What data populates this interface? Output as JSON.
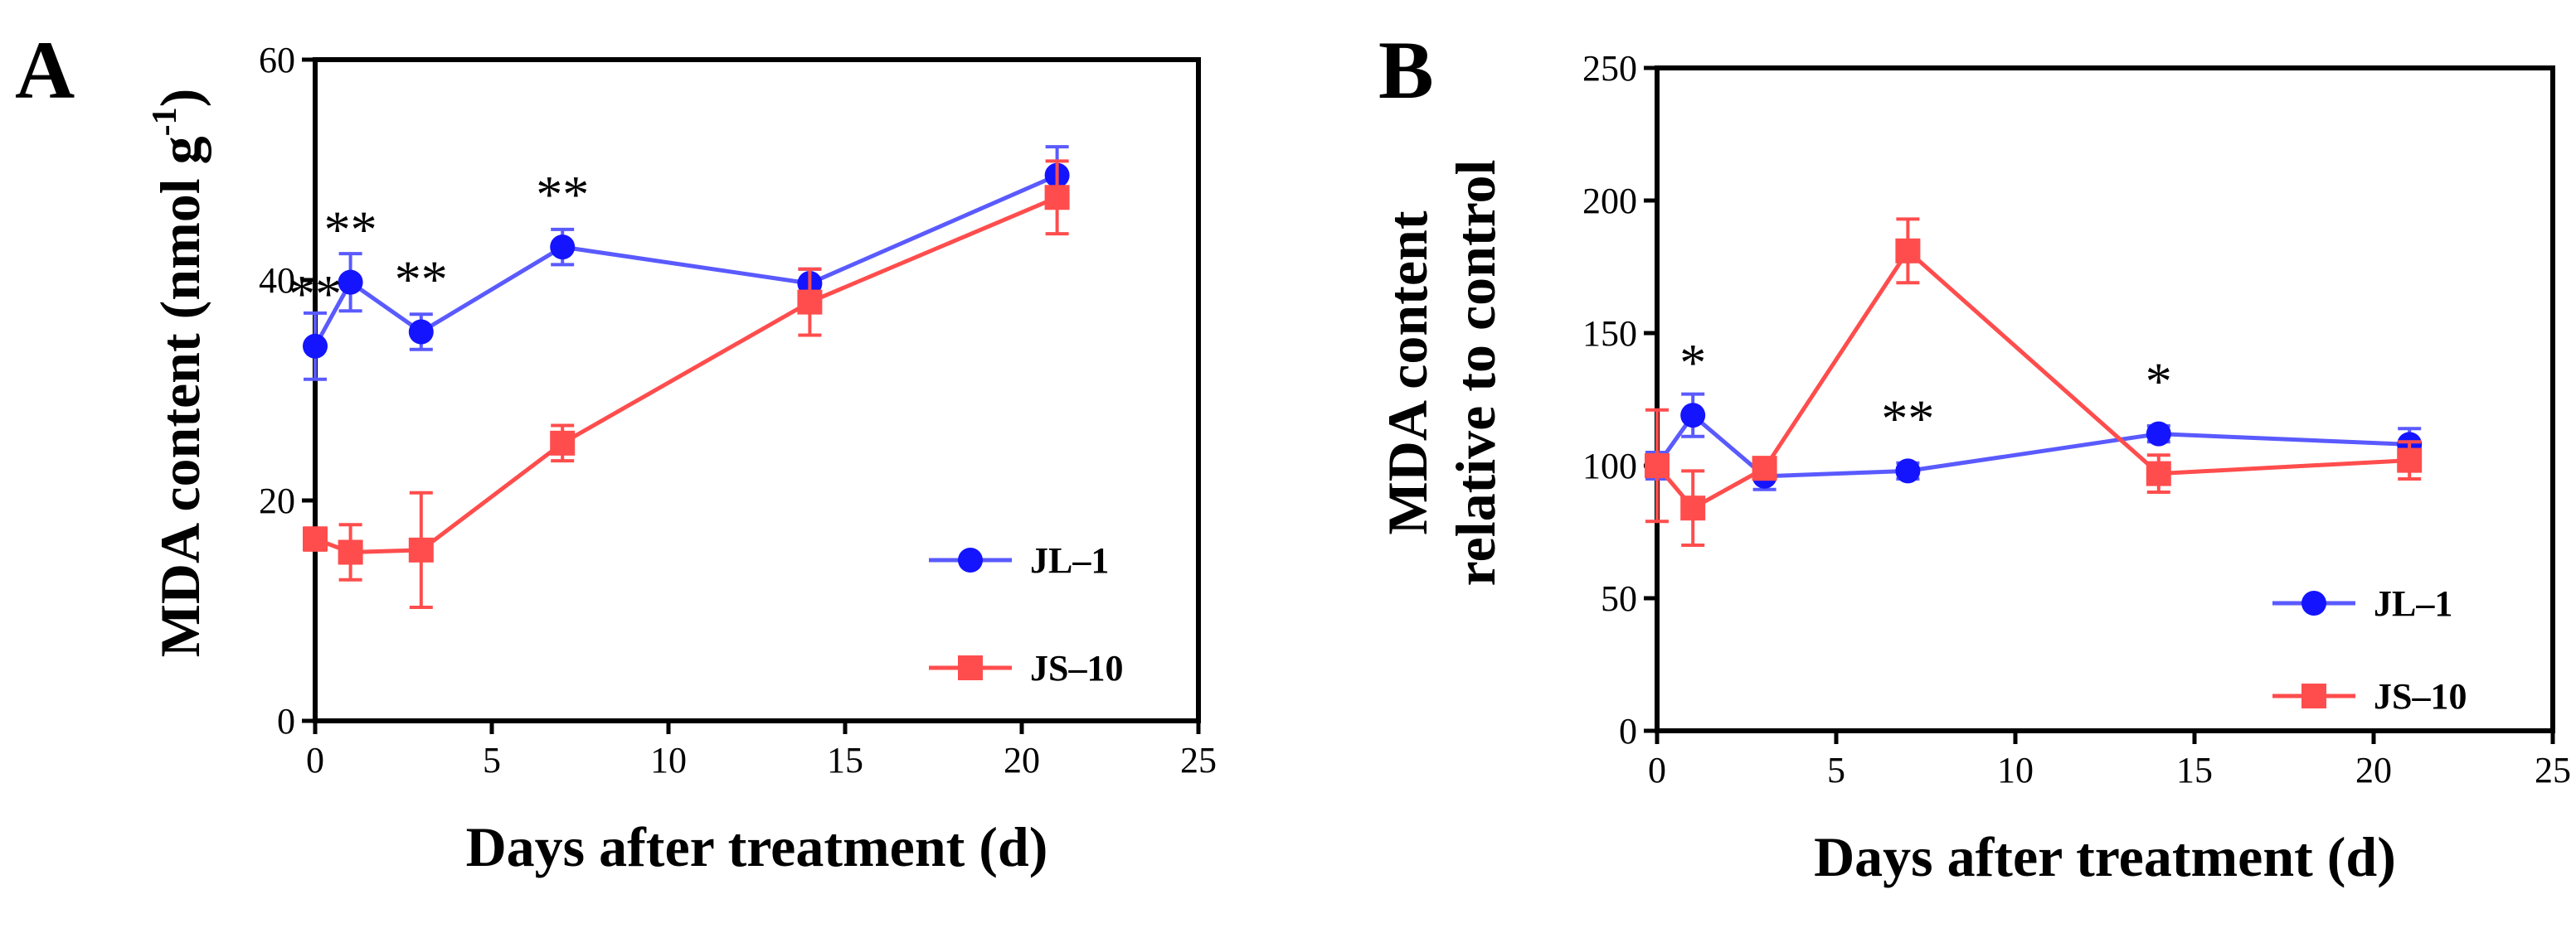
{
  "chart_data": [
    {
      "panel": "A",
      "type": "line",
      "xlabel": "Days after treatment (d)",
      "ylabel_main": "MDA content (nmol g",
      "ylabel_sup": "-1",
      "ylabel_end": ")",
      "xlim": [
        0,
        25
      ],
      "ylim": [
        0,
        60
      ],
      "xticks": [
        0,
        5,
        10,
        15,
        20,
        25
      ],
      "yticks": [
        0,
        20,
        40,
        60
      ],
      "legend_position": "bottom-right",
      "series": [
        {
          "name": "JL–1",
          "color": "#5a5aff",
          "marker": "circle",
          "x": [
            0,
            1,
            3,
            7,
            14,
            21
          ],
          "y": [
            34,
            39.8,
            35.3,
            43,
            39.7,
            49.5
          ],
          "err": [
            3,
            2.6,
            1.6,
            1.6,
            1.3,
            2.6
          ]
        },
        {
          "name": "JS–10",
          "color": "#ff4d4d",
          "marker": "square",
          "x": [
            0,
            1,
            3,
            7,
            14,
            21
          ],
          "y": [
            16.5,
            15.3,
            15.5,
            25.2,
            38,
            47.5
          ],
          "err": [
            1,
            2.5,
            5.2,
            1.6,
            3,
            3.3
          ]
        }
      ],
      "annotations": [
        {
          "text": "**",
          "x": 0,
          "y": 34
        },
        {
          "text": "**",
          "x": 1,
          "y": 39.8
        },
        {
          "text": "**",
          "x": 3,
          "y": 35.3
        },
        {
          "text": "**",
          "x": 7,
          "y": 43
        }
      ]
    },
    {
      "panel": "B",
      "type": "line",
      "xlabel": "Days after treatment (d)",
      "ylabel_lines": [
        "MDA content",
        "relative to control"
      ],
      "xlim": [
        0,
        25
      ],
      "ylim": [
        0,
        250
      ],
      "xticks": [
        0,
        5,
        10,
        15,
        20,
        25
      ],
      "yticks": [
        0,
        50,
        100,
        150,
        200,
        250
      ],
      "legend_position": "bottom-right",
      "series": [
        {
          "name": "JL–1",
          "color": "#5a5aff",
          "marker": "circle",
          "x": [
            0,
            1,
            3,
            7,
            14,
            21
          ],
          "y": [
            100,
            119,
            96,
            98,
            112,
            108
          ],
          "err": [
            5,
            8,
            5,
            3,
            3,
            6
          ]
        },
        {
          "name": "JS–10",
          "color": "#ff4d4d",
          "marker": "square",
          "x": [
            0,
            1,
            3,
            7,
            14,
            21
          ],
          "y": [
            100,
            84,
            99,
            181,
            97,
            102
          ],
          "err": [
            21,
            14,
            4,
            12,
            7,
            7
          ]
        }
      ],
      "annotations": [
        {
          "text": "*",
          "x": 1,
          "y": 119
        },
        {
          "text": "**",
          "x": 7,
          "y": 98
        },
        {
          "text": "*",
          "x": 14,
          "y": 112
        }
      ]
    }
  ]
}
